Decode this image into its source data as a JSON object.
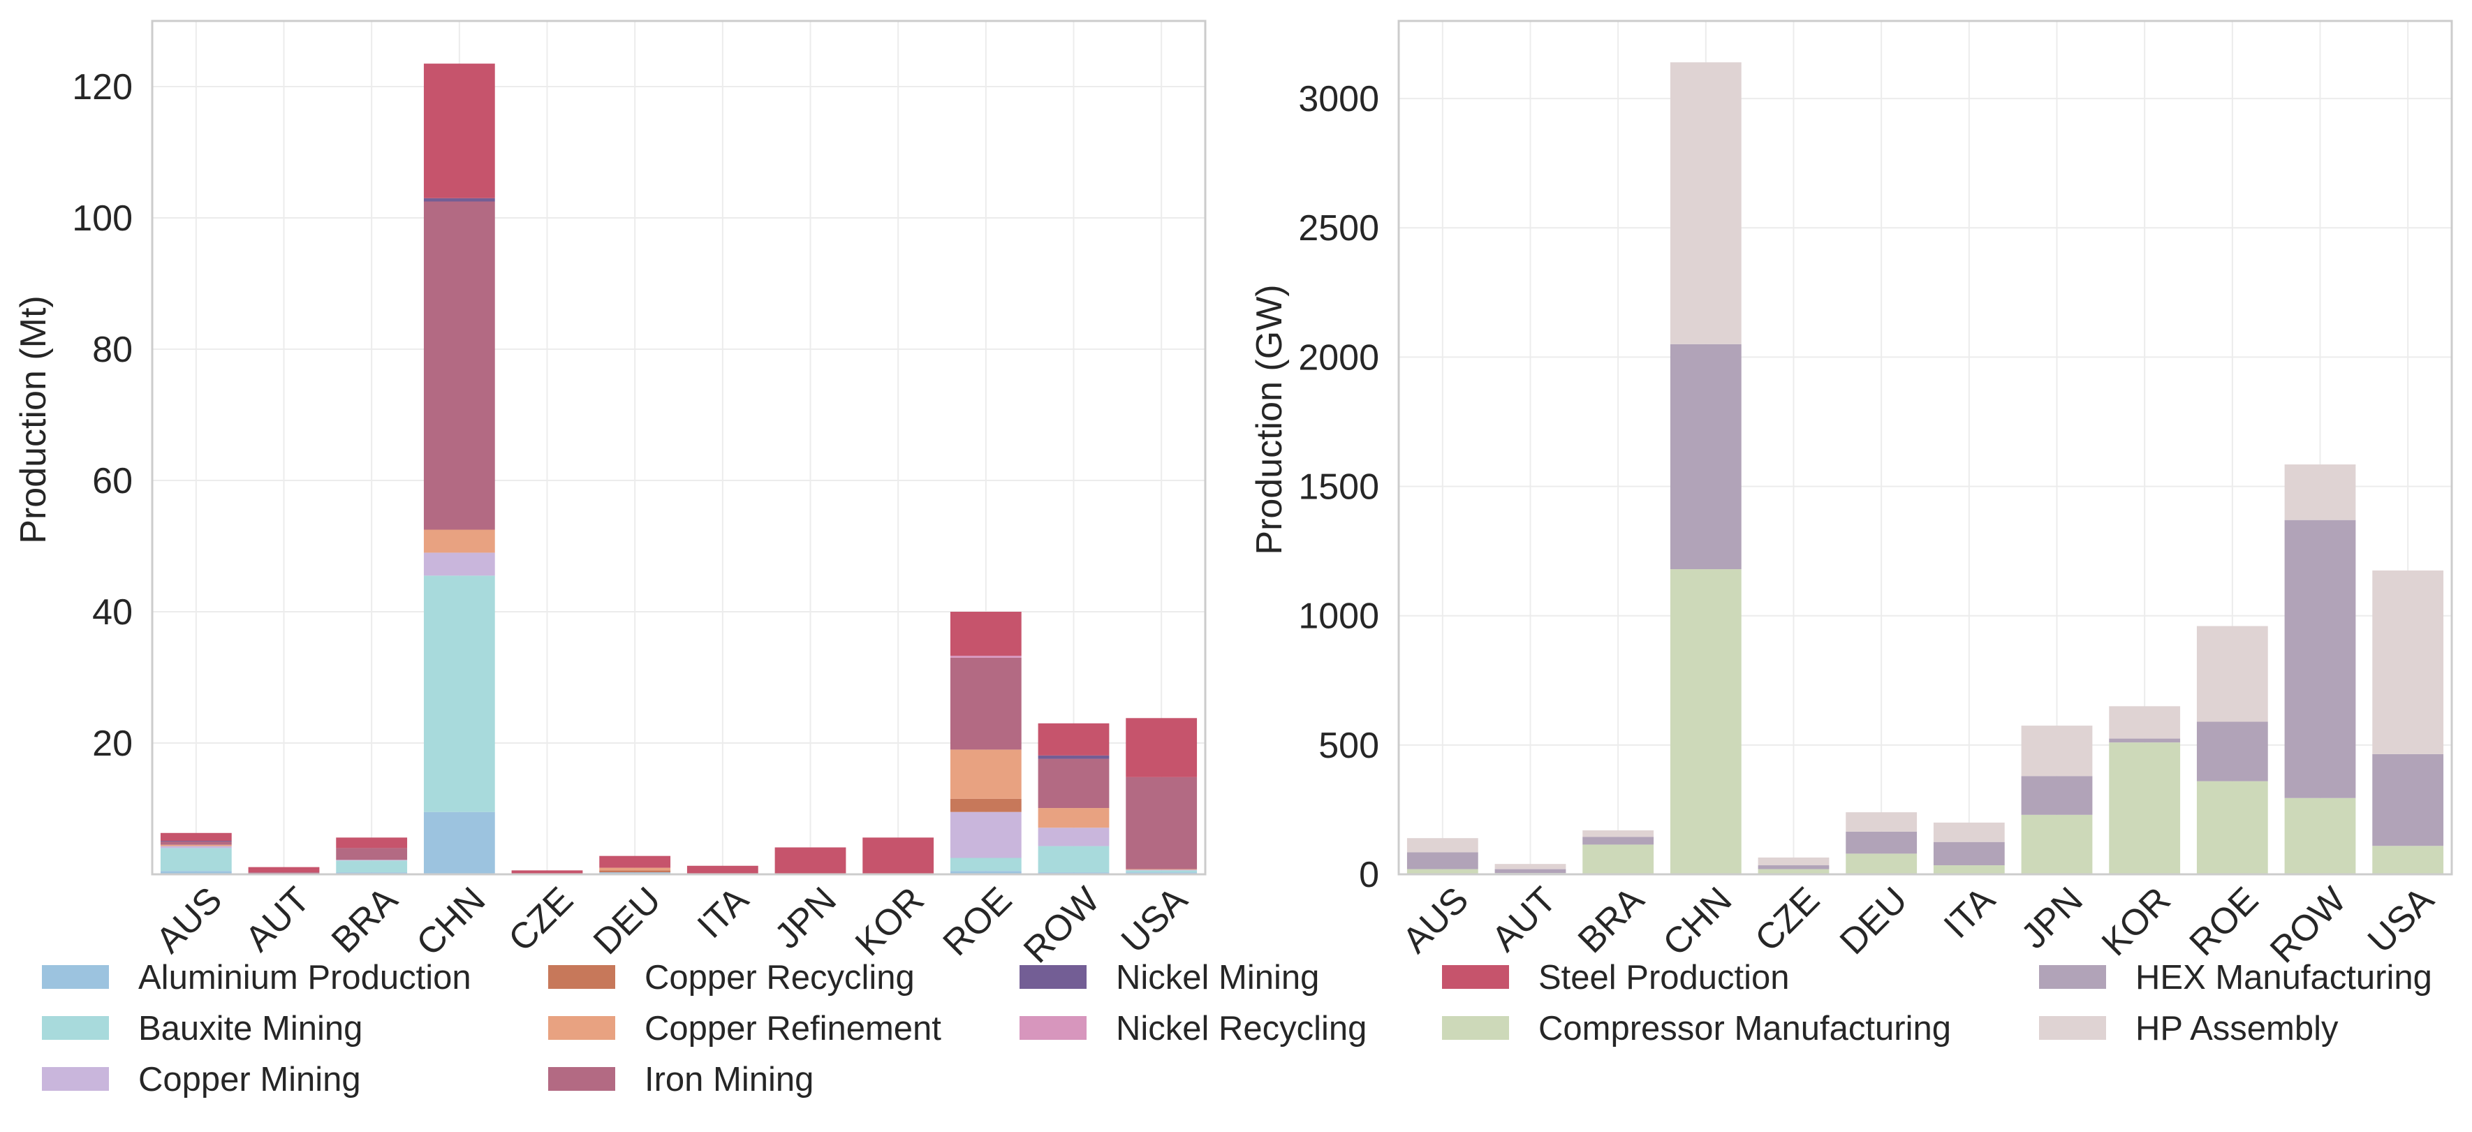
{
  "colors": {
    "Aluminium Production": "#9cc3df",
    "Bauxite Mining": "#a8dadc",
    "Copper Mining": "#c9b6dc",
    "Copper Recycling": "#c7785a",
    "Copper Refinement": "#e8a281",
    "Iron Mining": "#b36a83",
    "Nickel Mining": "#735e95",
    "Nickel Recycling": "#d796bd",
    "Steel Production": "#c6546c",
    "Compressor Manufacturing": "#cdd9b9",
    "HEX Manufacturing": "#b1a3b8",
    "HP Assembly": "#dfd3d3"
  },
  "legend": {
    "entries": [
      "Aluminium Production",
      "Bauxite Mining",
      "Copper Mining",
      "Copper Recycling",
      "Copper Refinement",
      "Iron Mining",
      "Nickel Mining",
      "Nickel Recycling",
      "Steel Production",
      "Compressor Manufacturing",
      "HEX Manufacturing",
      "HP Assembly"
    ]
  },
  "chart_data": [
    {
      "type": "bar",
      "stacked": true,
      "categories": [
        "AUS",
        "AUT",
        "BRA",
        "CHN",
        "CZE",
        "DEU",
        "ITA",
        "JPN",
        "KOR",
        "ROE",
        "ROW",
        "USA"
      ],
      "ylabel": "Production (Mt)",
      "xlabel": "",
      "ylim": [
        0,
        130
      ],
      "yticks": [
        20,
        40,
        60,
        80,
        100,
        120
      ],
      "grid": true,
      "series": [
        {
          "name": "Aluminium Production",
          "values": [
            0.5,
            0.1,
            0.3,
            9.5,
            0.1,
            0.3,
            0.1,
            0.1,
            0.1,
            0.5,
            0.3,
            0.3
          ]
        },
        {
          "name": "Bauxite Mining",
          "values": [
            3.5,
            0.0,
            1.8,
            36.0,
            0.0,
            0.0,
            0.0,
            0.0,
            0.0,
            2.0,
            4.0,
            0.3
          ]
        },
        {
          "name": "Copper Mining",
          "values": [
            0.3,
            0.0,
            0.1,
            3.5,
            0.0,
            0.0,
            0.0,
            0.0,
            0.0,
            7.0,
            2.8,
            0.1
          ]
        },
        {
          "name": "Copper Recycling",
          "values": [
            0.0,
            0.0,
            0.0,
            0.0,
            0.0,
            0.3,
            0.0,
            0.0,
            0.0,
            2.0,
            0.0,
            0.0
          ]
        },
        {
          "name": "Copper Refinement",
          "values": [
            0.2,
            0.0,
            0.0,
            3.5,
            0.0,
            0.4,
            0.0,
            0.0,
            0.0,
            7.5,
            3.0,
            0.1
          ]
        },
        {
          "name": "Iron Mining",
          "values": [
            0.5,
            0.2,
            1.8,
            50.0,
            0.0,
            0.0,
            0.0,
            0.0,
            0.0,
            14.0,
            7.5,
            14.0
          ]
        },
        {
          "name": "Nickel Mining",
          "values": [
            0.1,
            0.0,
            0.0,
            0.5,
            0.0,
            0.0,
            0.0,
            0.0,
            0.0,
            0.0,
            0.5,
            0.0
          ]
        },
        {
          "name": "Nickel Recycling",
          "values": [
            0.0,
            0.0,
            0.0,
            0.0,
            0.0,
            0.0,
            0.0,
            0.0,
            0.0,
            0.3,
            0.0,
            0.0
          ]
        },
        {
          "name": "Steel Production",
          "values": [
            1.2,
            0.8,
            1.6,
            20.5,
            0.5,
            1.8,
            1.2,
            4.0,
            5.5,
            6.7,
            4.9,
            9.0
          ]
        }
      ]
    },
    {
      "type": "bar",
      "stacked": true,
      "categories": [
        "AUS",
        "AUT",
        "BRA",
        "CHN",
        "CZE",
        "DEU",
        "ITA",
        "JPN",
        "KOR",
        "ROE",
        "ROW",
        "USA"
      ],
      "ylabel": "Production (GW)",
      "xlabel": "",
      "ylim": [
        0,
        3300
      ],
      "yticks": [
        0,
        500,
        1000,
        1500,
        2000,
        2500,
        3000
      ],
      "grid": true,
      "series": [
        {
          "name": "Compressor Manufacturing",
          "values": [
            20,
            5,
            115,
            1180,
            20,
            80,
            35,
            230,
            510,
            360,
            295,
            110
          ]
        },
        {
          "name": "HEX Manufacturing",
          "values": [
            65,
            15,
            30,
            870,
            15,
            85,
            90,
            150,
            15,
            230,
            1075,
            355
          ]
        },
        {
          "name": "HP Assembly",
          "values": [
            55,
            20,
            25,
            1090,
            30,
            75,
            75,
            195,
            125,
            370,
            215,
            710
          ]
        }
      ]
    }
  ]
}
